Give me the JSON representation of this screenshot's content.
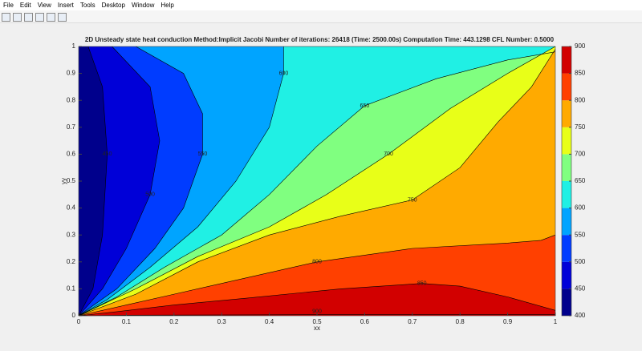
{
  "menu": [
    "File",
    "Edit",
    "View",
    "Insert",
    "Tools",
    "Desktop",
    "Window",
    "Help"
  ],
  "chart_data": {
    "type": "contour",
    "title": "2D Unsteady state heat conduction  Method:Implicit Jacobi  Number of iterations: 26418 (Time: 2500.00s)  Computation Time: 443.1298  CFL Number: 0.5000",
    "x_label": "xx",
    "y_label": "yy",
    "xlim": [
      0,
      1
    ],
    "ylim": [
      0,
      1
    ],
    "xticks": [
      0,
      0.1,
      0.2,
      0.3,
      0.4,
      0.5,
      0.6,
      0.7,
      0.8,
      0.9,
      1
    ],
    "yticks": [
      0,
      0.1,
      0.2,
      0.3,
      0.4,
      0.5,
      0.6,
      0.7,
      0.8,
      0.9,
      1
    ],
    "levels": [
      450,
      500,
      550,
      600,
      650,
      700,
      750,
      800,
      850,
      900
    ],
    "colors": [
      "#00008c",
      "#0000d8",
      "#003cff",
      "#00a4ff",
      "#20f0e4",
      "#80ff80",
      "#e8ff18",
      "#ffaa00",
      "#ff4000",
      "#d20000"
    ],
    "clim": [
      400,
      900
    ],
    "cticks": [
      400,
      450,
      500,
      550,
      600,
      650,
      700,
      750,
      800,
      850,
      900
    ]
  }
}
